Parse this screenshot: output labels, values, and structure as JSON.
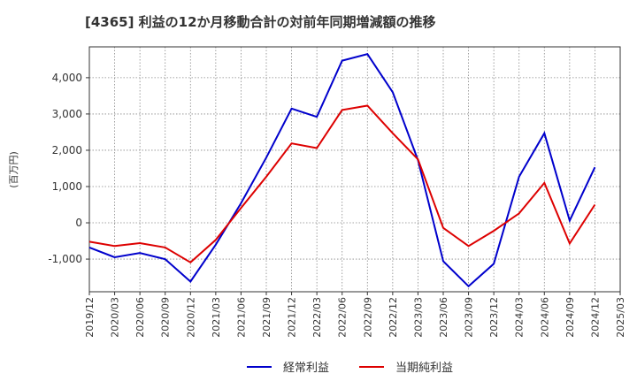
{
  "chart_data": {
    "type": "line",
    "title": "[4365]  利益の12か月移動合計の対前年同期増減額の推移",
    "xlabel": "",
    "ylabel": "(百万円)",
    "grid": true,
    "legend_position": "bottom-center",
    "ylim": [
      -1900,
      4850
    ],
    "yticks": [
      -1000,
      0,
      1000,
      2000,
      3000,
      4000
    ],
    "ytick_labels": [
      "-1,000",
      "0",
      "1,000",
      "2,000",
      "3,000",
      "4,000"
    ],
    "x_labels": [
      "2019/12",
      "2020/03",
      "2020/06",
      "2020/09",
      "2020/12",
      "2021/03",
      "2021/06",
      "2021/09",
      "2021/12",
      "2022/03",
      "2022/06",
      "2022/09",
      "2022/12",
      "2023/03",
      "2023/06",
      "2023/09",
      "2023/12",
      "2024/03",
      "2024/06",
      "2024/09",
      "2024/12",
      "2025/03"
    ],
    "series": [
      {
        "name": "経常利益",
        "color": "#0000cc",
        "values": [
          -680,
          -950,
          -830,
          -1000,
          -1620,
          -600,
          540,
          1800,
          3150,
          2920,
          4470,
          4650,
          3600,
          1730,
          -1060,
          -1750,
          -1130,
          1270,
          2470,
          60,
          1530,
          null
        ]
      },
      {
        "name": "当期純利益",
        "color": "#dd0000",
        "values": [
          -520,
          -640,
          -560,
          -680,
          -1090,
          -470,
          410,
          1270,
          2190,
          2060,
          3110,
          3230,
          2470,
          1750,
          -140,
          -640,
          -220,
          260,
          1100,
          -570,
          500,
          null
        ]
      }
    ]
  }
}
